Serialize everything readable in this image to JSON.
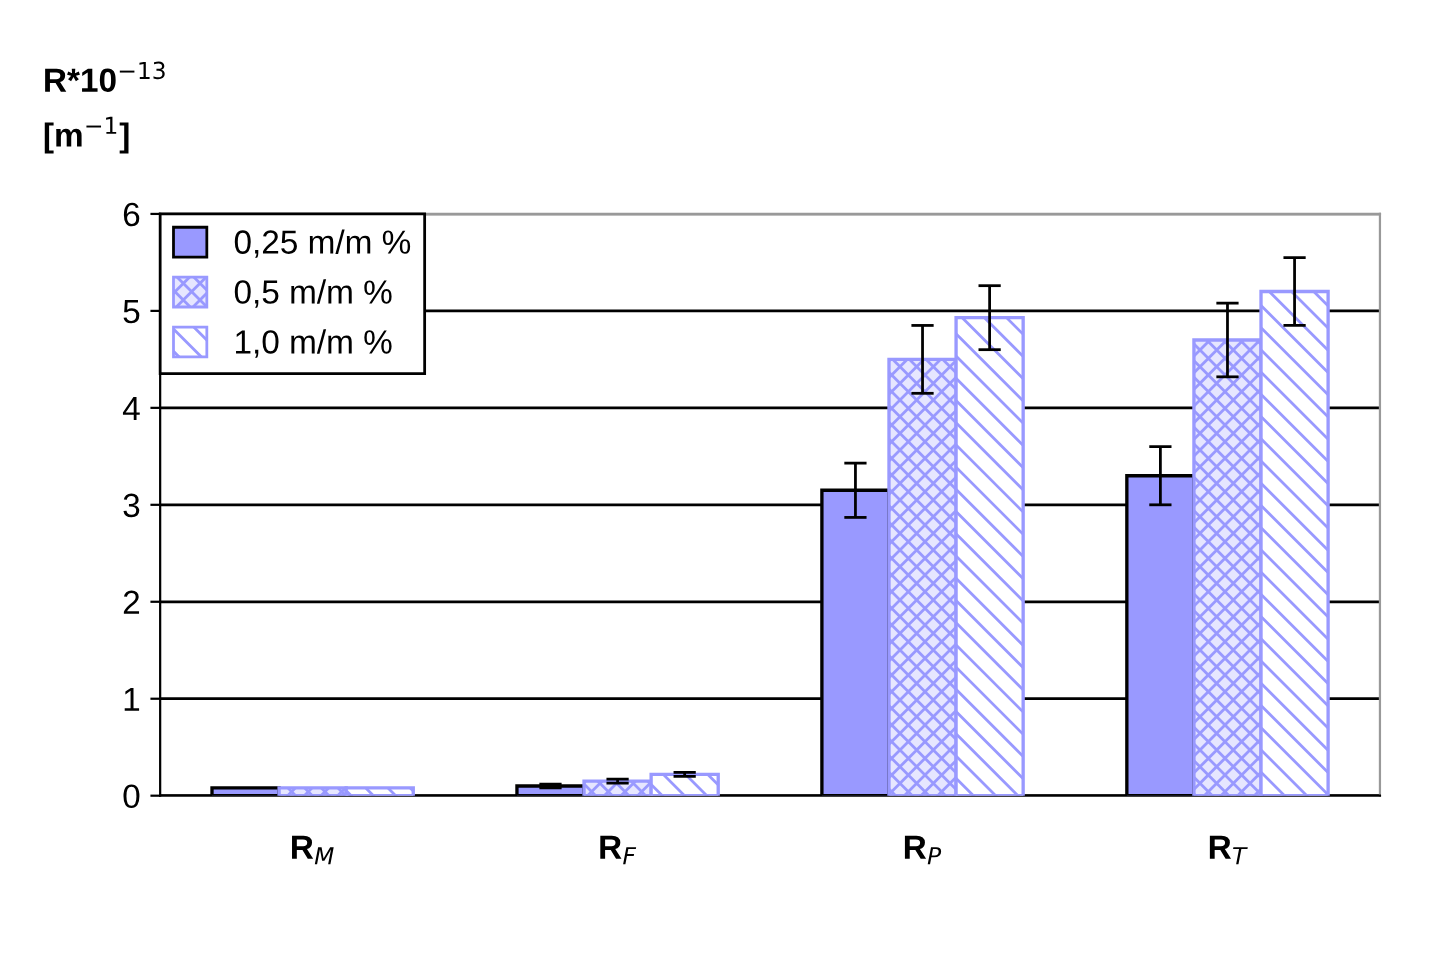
{
  "chart_data": {
    "type": "bar",
    "ylabel": "R*10$^{−13}$\n[m$^{−1}$]",
    "categories": [
      "R$_{M}$",
      "R$_{F}$",
      "R$_{P}$",
      "R$_{T}$"
    ],
    "series": [
      {
        "name": "0,25 m/m %",
        "color": "#9999ff",
        "values": [
          0.08,
          0.1,
          3.15,
          3.3
        ],
        "errors": [
          null,
          0.02,
          0.28,
          0.3
        ]
      },
      {
        "name": "0,5 m/m %",
        "color": "#9999ff",
        "values": [
          0.08,
          0.15,
          4.5,
          4.7
        ],
        "errors": [
          null,
          0.02,
          0.35,
          0.38
        ]
      },
      {
        "name": "1,0 m/m %",
        "color": "#9999ff",
        "values": [
          0.08,
          0.22,
          4.93,
          5.2
        ],
        "errors": [
          null,
          0.02,
          0.33,
          0.35
        ]
      }
    ],
    "ylim": [
      0,
      6
    ],
    "yticks": [
      0,
      1,
      2,
      3,
      4,
      5,
      6
    ],
    "grid": "y",
    "legend": "top left"
  }
}
